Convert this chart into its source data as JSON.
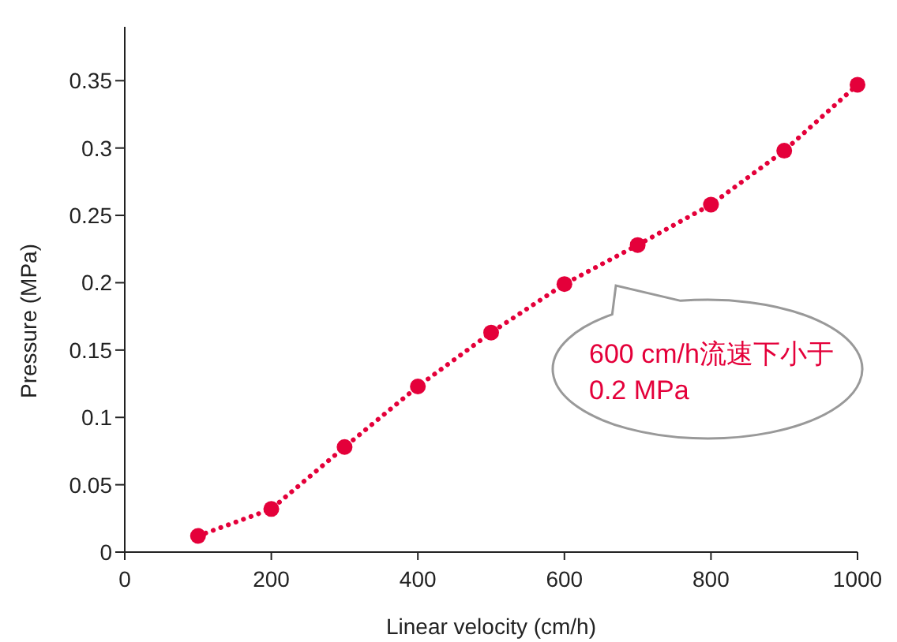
{
  "chart_data": {
    "type": "line",
    "xlabel": "Linear velocity (cm/h)",
    "ylabel": "Pressure (MPa)",
    "x": [
      100,
      200,
      300,
      400,
      500,
      600,
      700,
      800,
      900,
      1000
    ],
    "series": [
      {
        "color": "#e4003a",
        "values": [
          0.012,
          0.032,
          0.078,
          0.123,
          0.163,
          0.199,
          0.228,
          0.258,
          0.298,
          0.347
        ]
      }
    ],
    "xlim": [
      0,
      1000
    ],
    "ylim": [
      0,
      0.39
    ],
    "xticks": [
      0,
      200,
      400,
      600,
      800,
      1000
    ],
    "yticks": [
      0,
      0.05,
      0.1,
      0.15,
      0.2,
      0.25,
      0.3,
      0.35
    ],
    "marker": "circle",
    "line_style": "dotted",
    "grid": false,
    "annotations": [
      "600 cm/h流速下小于0.2 MPa"
    ]
  }
}
